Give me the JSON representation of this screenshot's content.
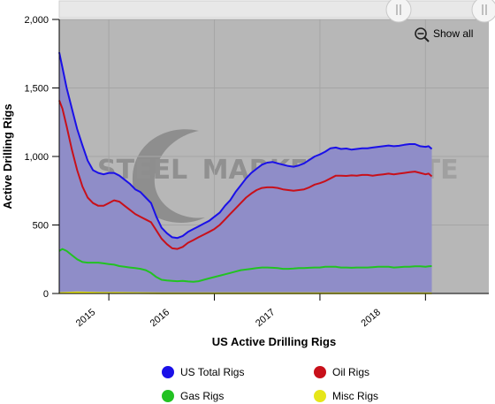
{
  "chart_data": {
    "type": "area",
    "title": "",
    "xlabel": "US Active Drilling Rigs",
    "ylabel": "Active Drilling Rigs",
    "ylim": [
      0,
      2000
    ],
    "yticks": [
      0,
      500,
      1000,
      "1,500",
      "2,000"
    ],
    "ytick_labels": [
      "0",
      "500",
      "1,000",
      "1,500",
      "2,000"
    ],
    "xtick_labels": [
      "2015",
      "2016",
      "2017",
      "2018"
    ],
    "x_range_years": [
      2014.53,
      2018.6
    ],
    "grid": true,
    "legend_position": "bottom",
    "zoom_label": "Show all",
    "watermark": "STEEL MARKET UPDATE",
    "colors": {
      "plot_bg": "#b7b7b7",
      "area": "#8f8dc8",
      "total": "#1a10e8",
      "oil": "#c8101a",
      "gas": "#22c222",
      "misc": "#e6e619"
    },
    "series": [
      {
        "name": "US Total Rigs",
        "color": "#1a10e8",
        "points": [
          [
            2014.53,
            1760
          ],
          [
            2014.56,
            1650
          ],
          [
            2014.6,
            1500
          ],
          [
            2014.65,
            1350
          ],
          [
            2014.7,
            1200
          ],
          [
            2014.75,
            1080
          ],
          [
            2014.8,
            970
          ],
          [
            2014.85,
            900
          ],
          [
            2014.9,
            880
          ],
          [
            2014.95,
            870
          ],
          [
            2015.0,
            880
          ],
          [
            2015.05,
            880
          ],
          [
            2015.1,
            860
          ],
          [
            2015.15,
            830
          ],
          [
            2015.2,
            800
          ],
          [
            2015.25,
            760
          ],
          [
            2015.3,
            740
          ],
          [
            2015.35,
            700
          ],
          [
            2015.4,
            660
          ],
          [
            2015.45,
            560
          ],
          [
            2015.5,
            480
          ],
          [
            2015.55,
            440
          ],
          [
            2015.6,
            410
          ],
          [
            2015.65,
            405
          ],
          [
            2015.7,
            420
          ],
          [
            2015.75,
            450
          ],
          [
            2015.8,
            470
          ],
          [
            2015.85,
            490
          ],
          [
            2015.9,
            510
          ],
          [
            2015.95,
            530
          ],
          [
            2016.0,
            560
          ],
          [
            2016.05,
            590
          ],
          [
            2016.1,
            640
          ],
          [
            2016.15,
            680
          ],
          [
            2016.2,
            740
          ],
          [
            2016.25,
            790
          ],
          [
            2016.3,
            840
          ],
          [
            2016.35,
            880
          ],
          [
            2016.4,
            910
          ],
          [
            2016.45,
            940
          ],
          [
            2016.5,
            955
          ],
          [
            2016.55,
            960
          ],
          [
            2016.6,
            950
          ],
          [
            2016.65,
            940
          ],
          [
            2016.7,
            930
          ],
          [
            2016.75,
            925
          ],
          [
            2016.8,
            935
          ],
          [
            2016.85,
            950
          ],
          [
            2016.9,
            975
          ],
          [
            2016.95,
            1000
          ],
          [
            2017.0,
            1015
          ],
          [
            2017.05,
            1035
          ],
          [
            2017.1,
            1060
          ],
          [
            2017.15,
            1065
          ],
          [
            2017.2,
            1055
          ],
          [
            2017.25,
            1058
          ],
          [
            2017.3,
            1050
          ],
          [
            2017.35,
            1055
          ],
          [
            2017.4,
            1060
          ],
          [
            2017.45,
            1060
          ],
          [
            2017.5,
            1065
          ],
          [
            2017.55,
            1070
          ],
          [
            2017.6,
            1075
          ],
          [
            2017.65,
            1080
          ],
          [
            2017.7,
            1075
          ],
          [
            2017.75,
            1078
          ],
          [
            2017.8,
            1085
          ],
          [
            2017.85,
            1090
          ],
          [
            2017.9,
            1090
          ],
          [
            2017.95,
            1075
          ],
          [
            2018.0,
            1070
          ],
          [
            2018.03,
            1075
          ],
          [
            2018.06,
            1055
          ]
        ]
      },
      {
        "name": "Oil Rigs",
        "color": "#c8101a",
        "points": [
          [
            2014.53,
            1410
          ],
          [
            2014.56,
            1350
          ],
          [
            2014.6,
            1220
          ],
          [
            2014.65,
            1050
          ],
          [
            2014.7,
            900
          ],
          [
            2014.75,
            780
          ],
          [
            2014.8,
            700
          ],
          [
            2014.85,
            660
          ],
          [
            2014.9,
            640
          ],
          [
            2014.95,
            640
          ],
          [
            2015.0,
            660
          ],
          [
            2015.05,
            680
          ],
          [
            2015.1,
            670
          ],
          [
            2015.15,
            640
          ],
          [
            2015.2,
            610
          ],
          [
            2015.25,
            580
          ],
          [
            2015.3,
            560
          ],
          [
            2015.35,
            540
          ],
          [
            2015.4,
            520
          ],
          [
            2015.45,
            460
          ],
          [
            2015.5,
            400
          ],
          [
            2015.55,
            360
          ],
          [
            2015.6,
            330
          ],
          [
            2015.65,
            325
          ],
          [
            2015.7,
            340
          ],
          [
            2015.75,
            370
          ],
          [
            2015.8,
            390
          ],
          [
            2015.85,
            410
          ],
          [
            2015.9,
            430
          ],
          [
            2015.95,
            450
          ],
          [
            2016.0,
            470
          ],
          [
            2016.05,
            500
          ],
          [
            2016.1,
            540
          ],
          [
            2016.15,
            580
          ],
          [
            2016.2,
            620
          ],
          [
            2016.25,
            660
          ],
          [
            2016.3,
            700
          ],
          [
            2016.35,
            730
          ],
          [
            2016.4,
            755
          ],
          [
            2016.45,
            770
          ],
          [
            2016.5,
            775
          ],
          [
            2016.55,
            775
          ],
          [
            2016.6,
            770
          ],
          [
            2016.65,
            760
          ],
          [
            2016.7,
            755
          ],
          [
            2016.75,
            750
          ],
          [
            2016.8,
            755
          ],
          [
            2016.85,
            760
          ],
          [
            2016.9,
            775
          ],
          [
            2016.95,
            795
          ],
          [
            2017.0,
            805
          ],
          [
            2017.05,
            820
          ],
          [
            2017.1,
            840
          ],
          [
            2017.15,
            860
          ],
          [
            2017.2,
            860
          ],
          [
            2017.25,
            858
          ],
          [
            2017.3,
            862
          ],
          [
            2017.35,
            860
          ],
          [
            2017.4,
            865
          ],
          [
            2017.45,
            865
          ],
          [
            2017.5,
            860
          ],
          [
            2017.55,
            865
          ],
          [
            2017.6,
            870
          ],
          [
            2017.65,
            875
          ],
          [
            2017.7,
            870
          ],
          [
            2017.75,
            875
          ],
          [
            2017.8,
            880
          ],
          [
            2017.85,
            885
          ],
          [
            2017.9,
            890
          ],
          [
            2017.95,
            880
          ],
          [
            2018.0,
            870
          ],
          [
            2018.03,
            875
          ],
          [
            2018.06,
            855
          ]
        ]
      },
      {
        "name": "Gas Rigs",
        "color": "#22c222",
        "points": [
          [
            2014.53,
            310
          ],
          [
            2014.56,
            325
          ],
          [
            2014.6,
            310
          ],
          [
            2014.65,
            280
          ],
          [
            2014.7,
            250
          ],
          [
            2014.75,
            230
          ],
          [
            2014.8,
            225
          ],
          [
            2014.85,
            225
          ],
          [
            2014.9,
            225
          ],
          [
            2014.95,
            220
          ],
          [
            2015.0,
            215
          ],
          [
            2015.05,
            210
          ],
          [
            2015.1,
            200
          ],
          [
            2015.15,
            195
          ],
          [
            2015.2,
            190
          ],
          [
            2015.25,
            185
          ],
          [
            2015.3,
            180
          ],
          [
            2015.35,
            170
          ],
          [
            2015.4,
            150
          ],
          [
            2015.45,
            120
          ],
          [
            2015.5,
            100
          ],
          [
            2015.55,
            95
          ],
          [
            2015.6,
            92
          ],
          [
            2015.65,
            90
          ],
          [
            2015.7,
            92
          ],
          [
            2015.75,
            88
          ],
          [
            2015.8,
            85
          ],
          [
            2015.85,
            90
          ],
          [
            2015.9,
            100
          ],
          [
            2015.95,
            110
          ],
          [
            2016.0,
            120
          ],
          [
            2016.05,
            130
          ],
          [
            2016.1,
            140
          ],
          [
            2016.15,
            150
          ],
          [
            2016.2,
            160
          ],
          [
            2016.25,
            170
          ],
          [
            2016.3,
            175
          ],
          [
            2016.35,
            180
          ],
          [
            2016.4,
            185
          ],
          [
            2016.45,
            190
          ],
          [
            2016.5,
            190
          ],
          [
            2016.55,
            188
          ],
          [
            2016.6,
            185
          ],
          [
            2016.65,
            180
          ],
          [
            2016.7,
            180
          ],
          [
            2016.75,
            182
          ],
          [
            2016.8,
            185
          ],
          [
            2016.85,
            185
          ],
          [
            2016.9,
            188
          ],
          [
            2016.95,
            190
          ],
          [
            2017.0,
            190
          ],
          [
            2017.05,
            195
          ],
          [
            2017.1,
            195
          ],
          [
            2017.15,
            195
          ],
          [
            2017.2,
            190
          ],
          [
            2017.25,
            190
          ],
          [
            2017.3,
            188
          ],
          [
            2017.35,
            190
          ],
          [
            2017.4,
            190
          ],
          [
            2017.45,
            190
          ],
          [
            2017.5,
            192
          ],
          [
            2017.55,
            195
          ],
          [
            2017.6,
            195
          ],
          [
            2017.65,
            195
          ],
          [
            2017.7,
            190
          ],
          [
            2017.75,
            192
          ],
          [
            2017.8,
            195
          ],
          [
            2017.85,
            195
          ],
          [
            2017.9,
            198
          ],
          [
            2017.95,
            198
          ],
          [
            2018.0,
            195
          ],
          [
            2018.03,
            198
          ],
          [
            2018.06,
            200
          ]
        ]
      },
      {
        "name": "Misc Rigs",
        "color": "#e6e619",
        "points": [
          [
            2014.53,
            3
          ],
          [
            2014.7,
            8
          ],
          [
            2014.9,
            5
          ],
          [
            2015.5,
            2
          ],
          [
            2016.0,
            1
          ],
          [
            2016.5,
            1
          ],
          [
            2017.0,
            2
          ],
          [
            2017.5,
            1
          ],
          [
            2018.0,
            1
          ],
          [
            2018.06,
            2
          ]
        ]
      }
    ]
  }
}
